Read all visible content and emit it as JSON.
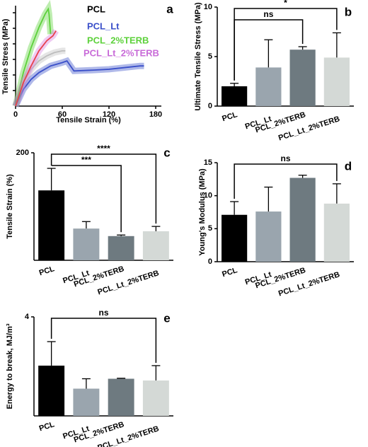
{
  "chart_data": [
    {
      "type": "line",
      "panel_label": "a",
      "x_label": "Tensile Strain (%)",
      "y_label": "Tensile Stress (MPa)",
      "xlim": [
        0,
        180
      ],
      "xticks": [
        0,
        60,
        120,
        180
      ],
      "ylim": [
        0,
        6
      ],
      "series": [
        {
          "name": "PCL",
          "color": "#bdbdbd",
          "label_color": "#000000",
          "x": [
            0,
            10,
            20,
            30,
            40,
            50,
            60,
            64
          ],
          "values": [
            0,
            1.4,
            2.2,
            2.7,
            3.0,
            3.2,
            3.3,
            3.3
          ]
        },
        {
          "name": "PCL_Lt",
          "color": "#3a4fc9",
          "label_color": "#3a4fc9",
          "x": [
            0,
            10,
            20,
            30,
            45,
            60,
            66,
            75,
            100,
            120,
            140,
            160,
            165
          ],
          "values": [
            0,
            1.0,
            1.6,
            2.0,
            2.4,
            2.6,
            2.7,
            2.1,
            2.15,
            2.2,
            2.3,
            2.4,
            2.4
          ]
        },
        {
          "name": "PCL_2%TERB",
          "color": "#5cd13a",
          "label_color": "#5cd13a",
          "x": [
            0,
            5,
            10,
            20,
            30,
            38,
            42,
            43,
            45
          ],
          "values": [
            0,
            1.0,
            2.0,
            3.5,
            4.7,
            5.5,
            5.8,
            5.5,
            4.3
          ]
        },
        {
          "name": "PCL_Lt_2%TERB",
          "color": "#e8414f",
          "label_color": "#c86ad8",
          "x": [
            0,
            10,
            20,
            30,
            40,
            48,
            52
          ],
          "values": [
            0,
            1.4,
            2.4,
            3.3,
            3.9,
            4.2,
            4.5
          ]
        }
      ]
    },
    {
      "type": "bar",
      "panel_label": "b",
      "y_label": "Ultimate Tensile Stress (MPa)",
      "categories": [
        "PCL",
        "PCL_Lt",
        "PCL_2%TERB",
        "PCL_Lt_2%TERB"
      ],
      "colors": [
        "#000000",
        "#9aa5ae",
        "#6e7a80",
        "#d4d9d6"
      ],
      "values": [
        2.0,
        3.9,
        5.7,
        4.9
      ],
      "errors": [
        0.3,
        2.8,
        0.3,
        2.5
      ],
      "ylim": [
        0,
        10
      ],
      "yticks": [
        0,
        5,
        10
      ],
      "annotations": [
        {
          "text": "ns",
          "between": [
            "PCL",
            "PCL_2%TERB"
          ]
        },
        {
          "text": "*",
          "between": [
            "PCL",
            "PCL_Lt_2%TERB"
          ]
        }
      ]
    },
    {
      "type": "bar",
      "panel_label": "c",
      "y_label": "Tensile Strain (%)",
      "categories": [
        "PCL",
        "PCL_Lt",
        "PCL_2%TERB",
        "PCL_Lt_2%TERB"
      ],
      "colors": [
        "#000000",
        "#9aa5ae",
        "#6e7a80",
        "#d4d9d6"
      ],
      "values": [
        130,
        59,
        45,
        54
      ],
      "errors": [
        41,
        13,
        2,
        9
      ],
      "ylim": [
        0,
        200
      ],
      "yticks": [
        200
      ],
      "annotations": [
        {
          "text": "***",
          "between": [
            "PCL",
            "PCL_2%TERB"
          ]
        },
        {
          "text": "****",
          "between": [
            "PCL",
            "PCL_Lt_2%TERB"
          ]
        }
      ]
    },
    {
      "type": "bar",
      "panel_label": "d",
      "y_label": "Young's Modulus (MPa)",
      "categories": [
        "PCL",
        "PCL_Lt",
        "PCL_2%TERB",
        "PCL_Lt_2%TERB"
      ],
      "colors": [
        "#000000",
        "#9aa5ae",
        "#6e7a80",
        "#d4d9d6"
      ],
      "values": [
        7.1,
        7.6,
        12.7,
        8.8
      ],
      "errors": [
        2.0,
        3.7,
        0.4,
        3.0
      ],
      "ylim": [
        0,
        15
      ],
      "yticks": [
        0,
        5,
        10,
        15
      ],
      "annotations": [
        {
          "text": "ns",
          "between": [
            "PCL",
            "PCL_Lt_2%TERB"
          ]
        }
      ]
    },
    {
      "type": "bar",
      "panel_label": "e",
      "y_label": "Energy to break, MJ/m³",
      "categories": [
        "PCL",
        "PCL_Lt",
        "PCL_2%TERB",
        "PCL_Lt_2%TERB"
      ],
      "colors": [
        "#000000",
        "#9aa5ae",
        "#6e7a80",
        "#d4d9d6"
      ],
      "values": [
        2.03,
        1.1,
        1.5,
        1.43
      ],
      "errors": [
        0.97,
        0.4,
        0.02,
        0.6
      ],
      "ylim": [
        0,
        4
      ],
      "yticks": [
        4
      ],
      "annotations": [
        {
          "text": "ns",
          "between": [
            "PCL",
            "PCL_Lt_2%TERB"
          ]
        }
      ]
    }
  ]
}
